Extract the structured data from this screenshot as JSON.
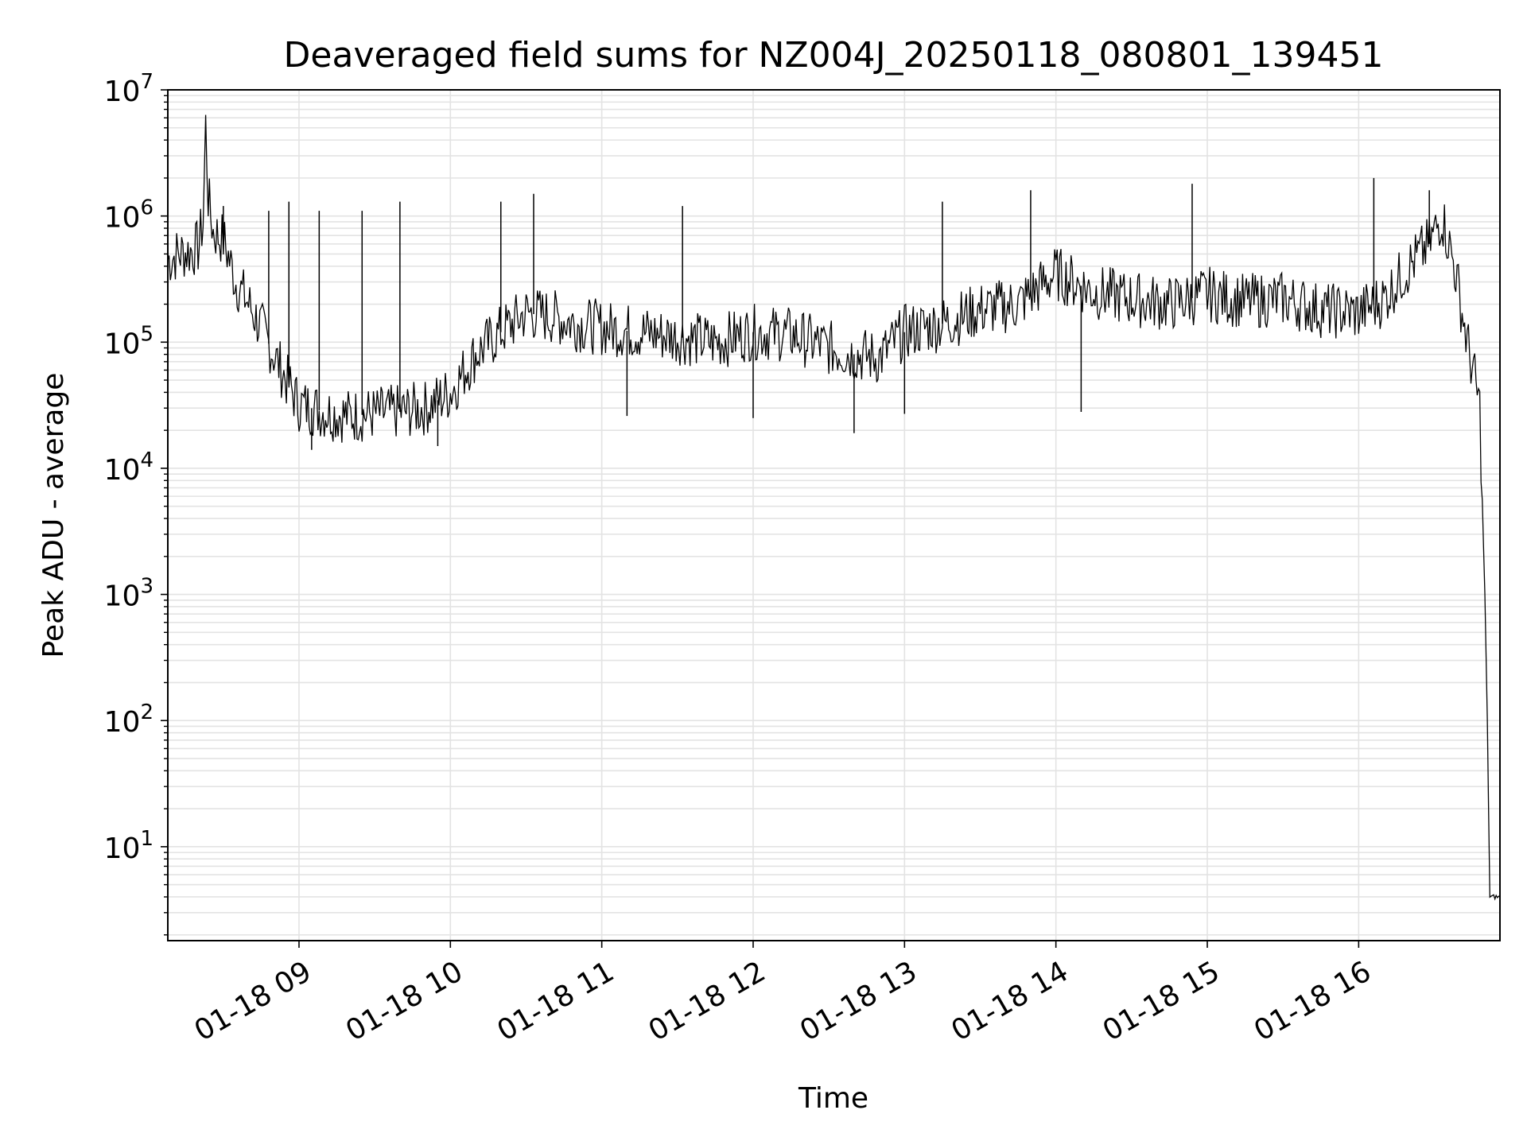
{
  "chart_data": {
    "type": "line",
    "title": "Deaveraged field sums for NZ004J_20250118_080801_139451",
    "xlabel": "Time",
    "ylabel": "Peak ADU - average",
    "yscale": "log",
    "ylim": [
      1.8,
      10000000
    ],
    "xlim": [
      "2025-01-18 08:08",
      "2025-01-18 16:56"
    ],
    "grid": true,
    "line_color": "#000000",
    "grid_color": "#e3e3e3",
    "x_ticks": [
      {
        "at": "2025-01-18 09:00",
        "label": "01-18 09"
      },
      {
        "at": "2025-01-18 10:00",
        "label": "01-18 10"
      },
      {
        "at": "2025-01-18 11:00",
        "label": "01-18 11"
      },
      {
        "at": "2025-01-18 12:00",
        "label": "01-18 12"
      },
      {
        "at": "2025-01-18 13:00",
        "label": "01-18 13"
      },
      {
        "at": "2025-01-18 14:00",
        "label": "01-18 14"
      },
      {
        "at": "2025-01-18 15:00",
        "label": "01-18 15"
      },
      {
        "at": "2025-01-18 16:00",
        "label": "01-18 16"
      }
    ],
    "y_ticks": [
      {
        "exp": 1,
        "value": 10,
        "base": "10",
        "sup": "1"
      },
      {
        "exp": 2,
        "value": 100,
        "base": "10",
        "sup": "2"
      },
      {
        "exp": 3,
        "value": 1000,
        "base": "10",
        "sup": "3"
      },
      {
        "exp": 4,
        "value": 10000,
        "base": "10",
        "sup": "4"
      },
      {
        "exp": 5,
        "value": 100000,
        "base": "10",
        "sup": "5"
      },
      {
        "exp": 6,
        "value": 1000000,
        "base": "10",
        "sup": "6"
      },
      {
        "exp": 7,
        "value": 10000000,
        "base": "10",
        "sup": "7"
      }
    ],
    "series": [
      {
        "x": [
          "2025-01-18 08:08",
          "2025-01-18 08:12",
          "2025-01-18 08:16",
          "2025-01-18 08:20",
          "2025-01-18 08:22",
          "2025-01-18 08:23",
          "2025-01-18 08:24",
          "2025-01-18 08:26",
          "2025-01-18 08:30",
          "2025-01-18 08:35",
          "2025-01-18 08:40",
          "2025-01-18 08:45",
          "2025-01-18 08:50",
          "2025-01-18 08:55",
          "2025-01-18 09:00",
          "2025-01-18 09:10",
          "2025-01-18 09:20",
          "2025-01-18 09:30",
          "2025-01-18 09:40",
          "2025-01-18 09:50",
          "2025-01-18 10:00",
          "2025-01-18 10:10",
          "2025-01-18 10:20",
          "2025-01-18 10:30",
          "2025-01-18 10:40",
          "2025-01-18 10:50",
          "2025-01-18 11:00",
          "2025-01-18 11:15",
          "2025-01-18 11:30",
          "2025-01-18 11:45",
          "2025-01-18 12:00",
          "2025-01-18 12:15",
          "2025-01-18 12:30",
          "2025-01-18 12:40",
          "2025-01-18 12:50",
          "2025-01-18 13:00",
          "2025-01-18 13:15",
          "2025-01-18 13:30",
          "2025-01-18 13:45",
          "2025-01-18 14:00",
          "2025-01-18 14:15",
          "2025-01-18 14:30",
          "2025-01-18 14:45",
          "2025-01-18 15:00",
          "2025-01-18 15:15",
          "2025-01-18 15:30",
          "2025-01-18 15:45",
          "2025-01-18 16:00",
          "2025-01-18 16:10",
          "2025-01-18 16:20",
          "2025-01-18 16:28",
          "2025-01-18 16:33",
          "2025-01-18 16:38",
          "2025-01-18 16:43",
          "2025-01-18 16:46",
          "2025-01-18 16:48",
          "2025-01-18 16:50",
          "2025-01-18 16:51",
          "2025-01-18 16:52",
          "2025-01-18 16:56"
        ],
        "y": [
          450000,
          500000,
          520000,
          560000,
          900000,
          5300000,
          1400000,
          750000,
          650000,
          300000,
          200000,
          130000,
          80000,
          50000,
          32000,
          28000,
          26000,
          27000,
          28000,
          30000,
          40000,
          80000,
          120000,
          170000,
          160000,
          140000,
          130000,
          120000,
          110000,
          100000,
          120000,
          115000,
          90000,
          80000,
          75000,
          120000,
          140000,
          180000,
          200000,
          350000,
          250000,
          220000,
          200000,
          240000,
          210000,
          220000,
          180000,
          170000,
          220000,
          400000,
          600000,
          1000000,
          400000,
          100000,
          50000,
          30000,
          1000,
          100,
          4,
          4
        ],
        "spikes": [
          {
            "x": "2025-01-18 08:30",
            "y": 1200000
          },
          {
            "x": "2025-01-18 08:48",
            "y": 1100000
          },
          {
            "x": "2025-01-18 08:56",
            "y": 1300000
          },
          {
            "x": "2025-01-18 09:08",
            "y": 1100000
          },
          {
            "x": "2025-01-18 09:25",
            "y": 1100000
          },
          {
            "x": "2025-01-18 09:40",
            "y": 1300000
          },
          {
            "x": "2025-01-18 10:20",
            "y": 1300000
          },
          {
            "x": "2025-01-18 10:33",
            "y": 1500000
          },
          {
            "x": "2025-01-18 11:32",
            "y": 1200000
          },
          {
            "x": "2025-01-18 13:15",
            "y": 1300000
          },
          {
            "x": "2025-01-18 13:50",
            "y": 1600000
          },
          {
            "x": "2025-01-18 14:54",
            "y": 1800000
          },
          {
            "x": "2025-01-18 16:06",
            "y": 2000000
          },
          {
            "x": "2025-01-18 16:28",
            "y": 1600000
          }
        ],
        "dips": [
          {
            "x": "2025-01-18 09:05",
            "y": 14000
          },
          {
            "x": "2025-01-18 09:55",
            "y": 15000
          },
          {
            "x": "2025-01-18 11:10",
            "y": 26000
          },
          {
            "x": "2025-01-18 12:00",
            "y": 25000
          },
          {
            "x": "2025-01-18 12:40",
            "y": 19000
          },
          {
            "x": "2025-01-18 13:00",
            "y": 27000
          },
          {
            "x": "2025-01-18 14:10",
            "y": 28000
          }
        ]
      }
    ]
  }
}
